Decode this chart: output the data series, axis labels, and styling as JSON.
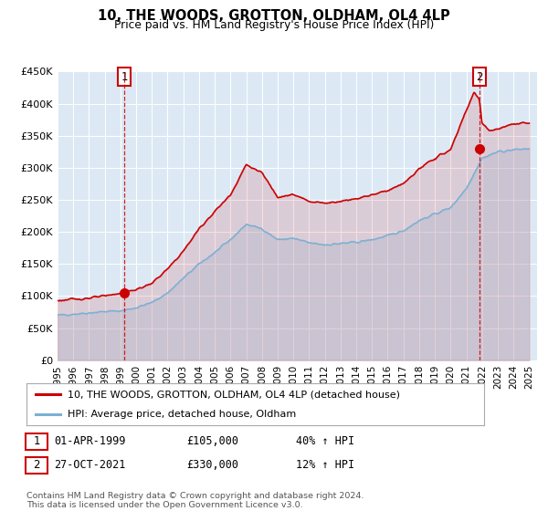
{
  "title": "10, THE WOODS, GROTTON, OLDHAM, OL4 4LP",
  "subtitle": "Price paid vs. HM Land Registry's House Price Index (HPI)",
  "bg_color": "#dce9f5",
  "red_line_color": "#cc0000",
  "blue_line_color": "#7ab0d4",
  "marker1_date": 1999.25,
  "marker1_value": 105000,
  "marker2_date": 2021.82,
  "marker2_value": 330000,
  "vline1_x": 1999.25,
  "vline2_x": 2021.82,
  "legend_line1": "10, THE WOODS, GROTTON, OLDHAM, OL4 4LP (detached house)",
  "legend_line2": "HPI: Average price, detached house, Oldham",
  "table_row1_num": "1",
  "table_row1_date": "01-APR-1999",
  "table_row1_price": "£105,000",
  "table_row1_hpi": "40% ↑ HPI",
  "table_row2_num": "2",
  "table_row2_date": "27-OCT-2021",
  "table_row2_price": "£330,000",
  "table_row2_hpi": "12% ↑ HPI",
  "footer": "Contains HM Land Registry data © Crown copyright and database right 2024.\nThis data is licensed under the Open Government Licence v3.0.",
  "ylim": [
    0,
    450000
  ],
  "xlim_start": 1995.0,
  "xlim_end": 2025.5,
  "yticks": [
    0,
    50000,
    100000,
    150000,
    200000,
    250000,
    300000,
    350000,
    400000,
    450000
  ],
  "ytick_labels": [
    "£0",
    "£50K",
    "£100K",
    "£150K",
    "£200K",
    "£250K",
    "£300K",
    "£350K",
    "£400K",
    "£450K"
  ],
  "xticks": [
    1995,
    1996,
    1997,
    1998,
    1999,
    2000,
    2001,
    2002,
    2003,
    2004,
    2005,
    2006,
    2007,
    2008,
    2009,
    2010,
    2011,
    2012,
    2013,
    2014,
    2015,
    2016,
    2017,
    2018,
    2019,
    2020,
    2021,
    2022,
    2023,
    2024,
    2025
  ],
  "hpi_key_years": [
    1995.0,
    1996.0,
    1997.0,
    1998.0,
    1999.0,
    2000.0,
    2001.0,
    2002.0,
    2003.0,
    2004.0,
    2005.0,
    2006.0,
    2007.0,
    2008.0,
    2009.0,
    2010.0,
    2011.0,
    2012.0,
    2013.0,
    2014.0,
    2015.0,
    2016.0,
    2017.0,
    2018.0,
    2019.0,
    2020.0,
    2021.0,
    2022.0,
    2023.0,
    2024.0,
    2025.0
  ],
  "hpi_key_vals": [
    70000,
    72000,
    74000,
    76000,
    77000,
    82000,
    90000,
    105000,
    128000,
    150000,
    168000,
    188000,
    212000,
    205000,
    188000,
    190000,
    183000,
    180000,
    182000,
    184000,
    188000,
    194000,
    202000,
    218000,
    228000,
    238000,
    268000,
    315000,
    325000,
    328000,
    330000
  ],
  "red_key_years": [
    1995.0,
    1996.0,
    1997.0,
    1998.0,
    1999.0,
    2000.0,
    2001.0,
    2002.0,
    2003.0,
    2004.0,
    2005.0,
    2006.0,
    2007.0,
    2008.0,
    2009.0,
    2010.0,
    2011.0,
    2012.0,
    2013.0,
    2014.0,
    2015.0,
    2016.0,
    2017.0,
    2018.0,
    2019.0,
    2020.0,
    2021.0,
    2021.5,
    2021.83,
    2022.0,
    2022.5,
    2023.0,
    2024.0,
    2025.0
  ],
  "red_key_vals": [
    93000,
    95000,
    97000,
    100000,
    105000,
    110000,
    120000,
    142000,
    170000,
    205000,
    232000,
    258000,
    305000,
    292000,
    255000,
    258000,
    248000,
    245000,
    248000,
    252000,
    258000,
    265000,
    275000,
    298000,
    315000,
    328000,
    390000,
    418000,
    405000,
    370000,
    358000,
    360000,
    368000,
    370000
  ]
}
